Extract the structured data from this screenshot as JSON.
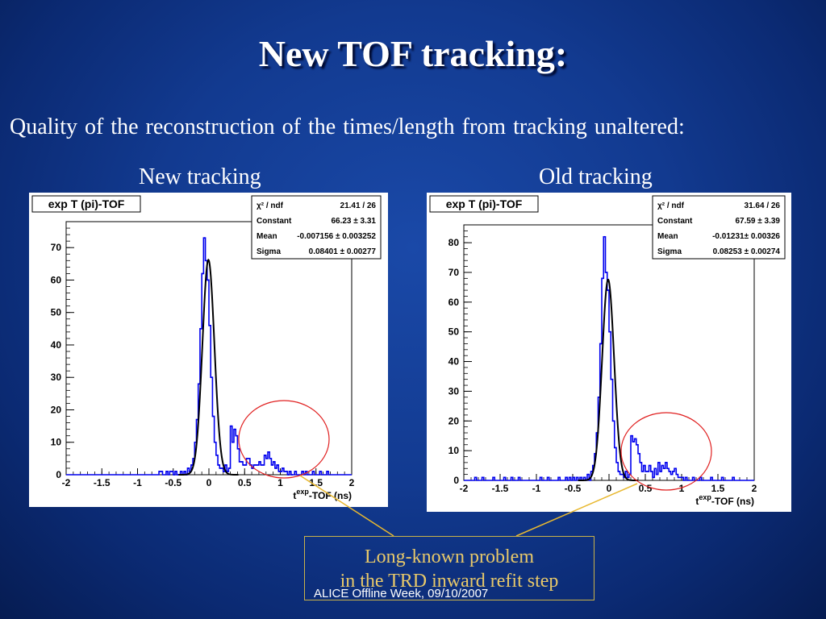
{
  "slide": {
    "title": "New TOF tracking:",
    "subtitle": "Quality of the reconstruction of the times/length from tracking unaltered:",
    "left_heading": "New tracking",
    "right_heading": "Old tracking",
    "callout_line1": "Long-known problem",
    "callout_line2": "in the TRD inward refit step",
    "footer": "ALICE Offline Week, 09/10/2007"
  },
  "colors": {
    "histogram": "#0000ee",
    "fit": "#000000",
    "circle": "#e02020",
    "pointer": "#e8b830",
    "callout_text": "#e8c96a"
  },
  "chart_data": [
    {
      "type": "histogram",
      "histogram_title": "exp T (pi)-TOF",
      "xlabel_base": "t",
      "xlabel_sup": "exp",
      "xlabel_rest": "-TOF (ns)",
      "xlim": [
        -2,
        2
      ],
      "ylim": [
        0,
        78
      ],
      "xticks": [
        -2,
        -1.5,
        -1,
        -0.5,
        0,
        0.5,
        1,
        1.5,
        2
      ],
      "xtick_labels": [
        "-2",
        "-1.5",
        "-1",
        "-0.5",
        "0",
        "0.5",
        "1",
        "1.5",
        "2"
      ],
      "yticks": [
        0,
        10,
        20,
        30,
        40,
        50,
        60,
        70
      ],
      "ytick_labels": [
        "0",
        "10",
        "20",
        "30",
        "40",
        "50",
        "60",
        "70"
      ],
      "stats": [
        {
          "label": "χ² / ndf",
          "value": "21.41 / 26"
        },
        {
          "label": "Constant",
          "value": "66.23 ± 3.31"
        },
        {
          "label": "Mean",
          "value": "-0.007156 ± 0.003252"
        },
        {
          "label": "Sigma",
          "value": "0.08401 ± 0.00277"
        }
      ],
      "fit": {
        "constant": 66.23,
        "mean": -0.007156,
        "sigma": 0.08401
      },
      "bin_width": 0.025,
      "bins_x": [
        -0.7,
        -0.675,
        -0.6,
        -0.55,
        -0.525,
        -0.5,
        -0.475,
        -0.45,
        -0.425,
        -0.4,
        -0.375,
        -0.35,
        -0.325,
        -0.3,
        -0.275,
        -0.25,
        -0.225,
        -0.2,
        -0.175,
        -0.15,
        -0.125,
        -0.1,
        -0.075,
        -0.05,
        -0.025,
        0.0,
        0.025,
        0.05,
        0.075,
        0.1,
        0.125,
        0.15,
        0.175,
        0.2,
        0.225,
        0.25,
        0.275,
        0.3,
        0.325,
        0.35,
        0.375,
        0.4,
        0.425,
        0.45,
        0.475,
        0.5,
        0.525,
        0.55,
        0.575,
        0.6,
        0.625,
        0.65,
        0.675,
        0.7,
        0.725,
        0.75,
        0.775,
        0.8,
        0.825,
        0.85,
        0.875,
        0.9,
        0.925,
        0.95,
        0.975,
        1.0,
        1.025,
        1.05,
        1.075,
        1.1,
        1.125,
        1.15,
        1.2,
        1.3,
        1.35,
        1.45,
        1.55,
        1.65
      ],
      "bins_y": [
        1,
        1,
        1,
        1,
        1,
        0,
        1,
        0,
        0,
        1,
        0,
        1,
        0,
        2,
        1,
        3,
        5,
        10,
        17,
        28,
        45,
        62,
        73,
        66,
        60,
        46,
        30,
        18,
        10,
        6,
        3,
        2,
        2,
        1,
        3,
        1,
        2,
        15,
        10,
        14,
        12,
        8,
        4,
        4,
        3,
        3,
        5,
        5,
        3,
        2,
        3,
        3,
        3,
        4,
        3,
        3,
        6,
        5,
        7,
        5,
        3,
        4,
        2,
        3,
        1,
        1,
        2,
        1,
        1,
        0,
        1,
        0,
        1,
        1,
        1,
        1,
        1,
        1
      ]
    },
    {
      "type": "histogram",
      "histogram_title": "exp T (pi)-TOF",
      "xlabel_base": "t",
      "xlabel_sup": "exp",
      "xlabel_rest": "-TOF (ns)",
      "xlim": [
        -2,
        2
      ],
      "ylim": [
        0,
        86
      ],
      "xticks": [
        -2,
        -1.5,
        -1,
        -0.5,
        0,
        0.5,
        1,
        1.5,
        2
      ],
      "xtick_labels": [
        "-2",
        "-1.5",
        "-1",
        "-0.5",
        "0",
        "0.5",
        "1",
        "1.5",
        "2"
      ],
      "yticks": [
        0,
        10,
        20,
        30,
        40,
        50,
        60,
        70,
        80
      ],
      "ytick_labels": [
        "0",
        "10",
        "20",
        "30",
        "40",
        "50",
        "60",
        "70",
        "80"
      ],
      "stats": [
        {
          "label": "χ² / ndf",
          "value": "31.64 / 26"
        },
        {
          "label": "Constant",
          "value": "67.59 ± 3.39"
        },
        {
          "label": "Mean",
          "value": "-0.01231± 0.00326"
        },
        {
          "label": "Sigma",
          "value": "0.08253 ± 0.00274"
        }
      ],
      "fit": {
        "constant": 67.59,
        "mean": -0.01231,
        "sigma": 0.08253
      },
      "bin_width": 0.025,
      "bins_x": [
        -1.85,
        -1.75,
        -1.6,
        -1.45,
        -1.35,
        -1.25,
        -0.95,
        -0.85,
        -0.7,
        -0.6,
        -0.55,
        -0.5,
        -0.45,
        -0.4,
        -0.35,
        -0.3,
        -0.25,
        -0.225,
        -0.2,
        -0.175,
        -0.15,
        -0.125,
        -0.1,
        -0.075,
        -0.05,
        -0.025,
        0.0,
        0.025,
        0.05,
        0.075,
        0.1,
        0.125,
        0.15,
        0.175,
        0.2,
        0.225,
        0.25,
        0.275,
        0.3,
        0.325,
        0.35,
        0.375,
        0.4,
        0.425,
        0.45,
        0.475,
        0.5,
        0.525,
        0.55,
        0.575,
        0.6,
        0.625,
        0.65,
        0.675,
        0.7,
        0.725,
        0.75,
        0.775,
        0.8,
        0.825,
        0.85,
        0.875,
        0.9,
        0.925,
        0.95,
        0.975,
        1.0,
        1.05,
        1.15,
        1.25,
        1.4,
        1.55,
        1.7
      ],
      "bins_y": [
        1,
        1,
        1,
        1,
        1,
        1,
        1,
        1,
        1,
        1,
        1,
        1,
        1,
        1,
        1,
        2,
        3,
        5,
        9,
        16,
        28,
        46,
        68,
        82,
        70,
        64,
        50,
        34,
        20,
        11,
        6,
        3,
        2,
        2,
        1,
        3,
        1,
        2,
        15,
        13,
        14,
        12,
        9,
        6,
        3,
        5,
        3,
        3,
        5,
        3,
        1,
        4,
        2,
        6,
        3,
        5,
        4,
        6,
        4,
        3,
        2,
        3,
        4,
        2,
        1,
        1,
        1,
        1,
        1,
        1,
        1,
        1,
        1
      ]
    }
  ]
}
